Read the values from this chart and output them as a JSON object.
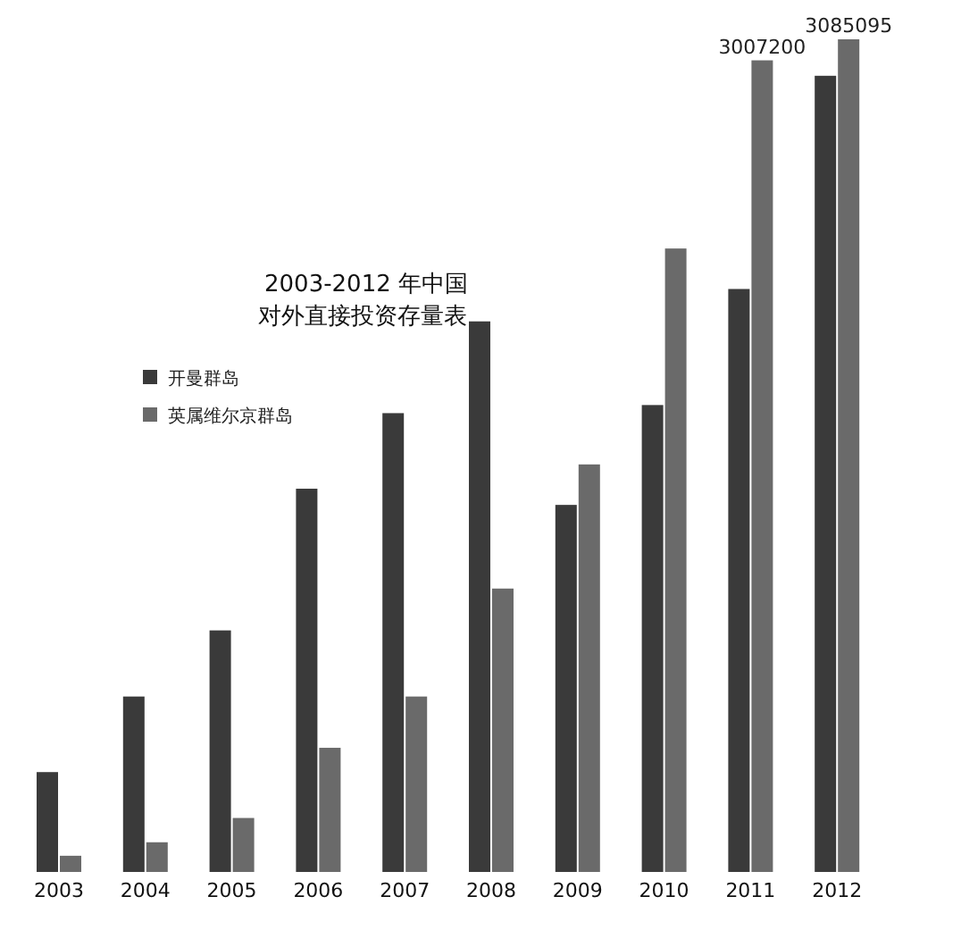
{
  "chart_data": {
    "type": "bar",
    "title": "2003-2012 年中国",
    "subtitle": "对外直接投资存量表",
    "categories": [
      "2003",
      "2004",
      "2005",
      "2006",
      "2007",
      "2008",
      "2009",
      "2010",
      "2011",
      "2012"
    ],
    "series": [
      {
        "name": "开曼群岛",
        "color": "#3a3a3a",
        "values": [
          370000,
          650000,
          895000,
          1420000,
          1700000,
          2040000,
          1360000,
          1730000,
          2160000,
          2950000
        ]
      },
      {
        "name": "英属维尔京群岛",
        "color": "#6a6a6a",
        "values": [
          60000,
          110000,
          200000,
          460000,
          650000,
          1050000,
          1510000,
          2310000,
          3007200,
          3085095
        ],
        "value_labels": [
          null,
          null,
          null,
          null,
          null,
          null,
          null,
          null,
          "3007200",
          "3085095"
        ]
      }
    ],
    "legend": "top left"
  }
}
